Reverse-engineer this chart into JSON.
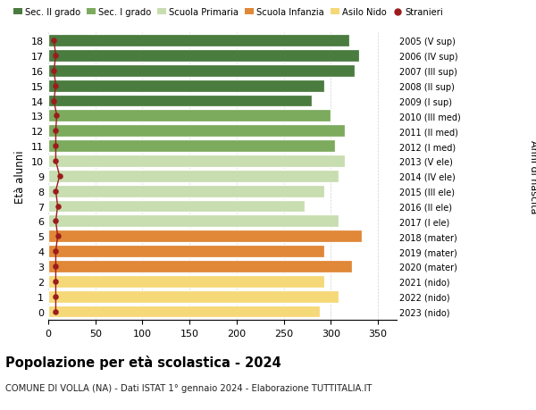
{
  "ages": [
    18,
    17,
    16,
    15,
    14,
    13,
    12,
    11,
    10,
    9,
    8,
    7,
    6,
    5,
    4,
    3,
    2,
    1,
    0
  ],
  "years": [
    "2005 (V sup)",
    "2006 (IV sup)",
    "2007 (III sup)",
    "2008 (II sup)",
    "2009 (I sup)",
    "2010 (III med)",
    "2011 (II med)",
    "2012 (I med)",
    "2013 (V ele)",
    "2014 (IV ele)",
    "2015 (III ele)",
    "2016 (II ele)",
    "2017 (I ele)",
    "2018 (mater)",
    "2019 (mater)",
    "2020 (mater)",
    "2021 (nido)",
    "2022 (nido)",
    "2023 (nido)"
  ],
  "values": [
    320,
    330,
    325,
    293,
    280,
    300,
    315,
    305,
    315,
    308,
    293,
    272,
    308,
    333,
    293,
    323,
    293,
    308,
    288
  ],
  "stranieri": [
    6,
    8,
    6,
    8,
    6,
    9,
    8,
    8,
    8,
    12,
    8,
    10,
    8,
    10,
    8,
    8,
    8,
    8,
    8
  ],
  "bar_colors": [
    "#4a7c3f",
    "#4a7c3f",
    "#4a7c3f",
    "#4a7c3f",
    "#4a7c3f",
    "#7dab5e",
    "#7dab5e",
    "#7dab5e",
    "#c8ddb0",
    "#c8ddb0",
    "#c8ddb0",
    "#c8ddb0",
    "#c8ddb0",
    "#e08838",
    "#e08838",
    "#e08838",
    "#f5d878",
    "#f5d878",
    "#f5d878"
  ],
  "legend_labels": [
    "Sec. II grado",
    "Sec. I grado",
    "Scuola Primaria",
    "Scuola Infanzia",
    "Asilo Nido",
    "Stranieri"
  ],
  "legend_colors": [
    "#4a7c3f",
    "#7dab5e",
    "#c8ddb0",
    "#e08838",
    "#f5d878",
    "#9b1c1c"
  ],
  "dot_color": "#9b1c1c",
  "ylabel": "Età alunni",
  "right_label": "Anni di nascita",
  "title": "Popolazione per età scolastica - 2024",
  "subtitle": "COMUNE DI VOLLA (NA) - Dati ISTAT 1° gennaio 2024 - Elaborazione TUTTITALIA.IT",
  "xlim": [
    0,
    370
  ],
  "xticks": [
    0,
    50,
    100,
    150,
    200,
    250,
    300,
    350
  ],
  "bar_height": 0.82
}
